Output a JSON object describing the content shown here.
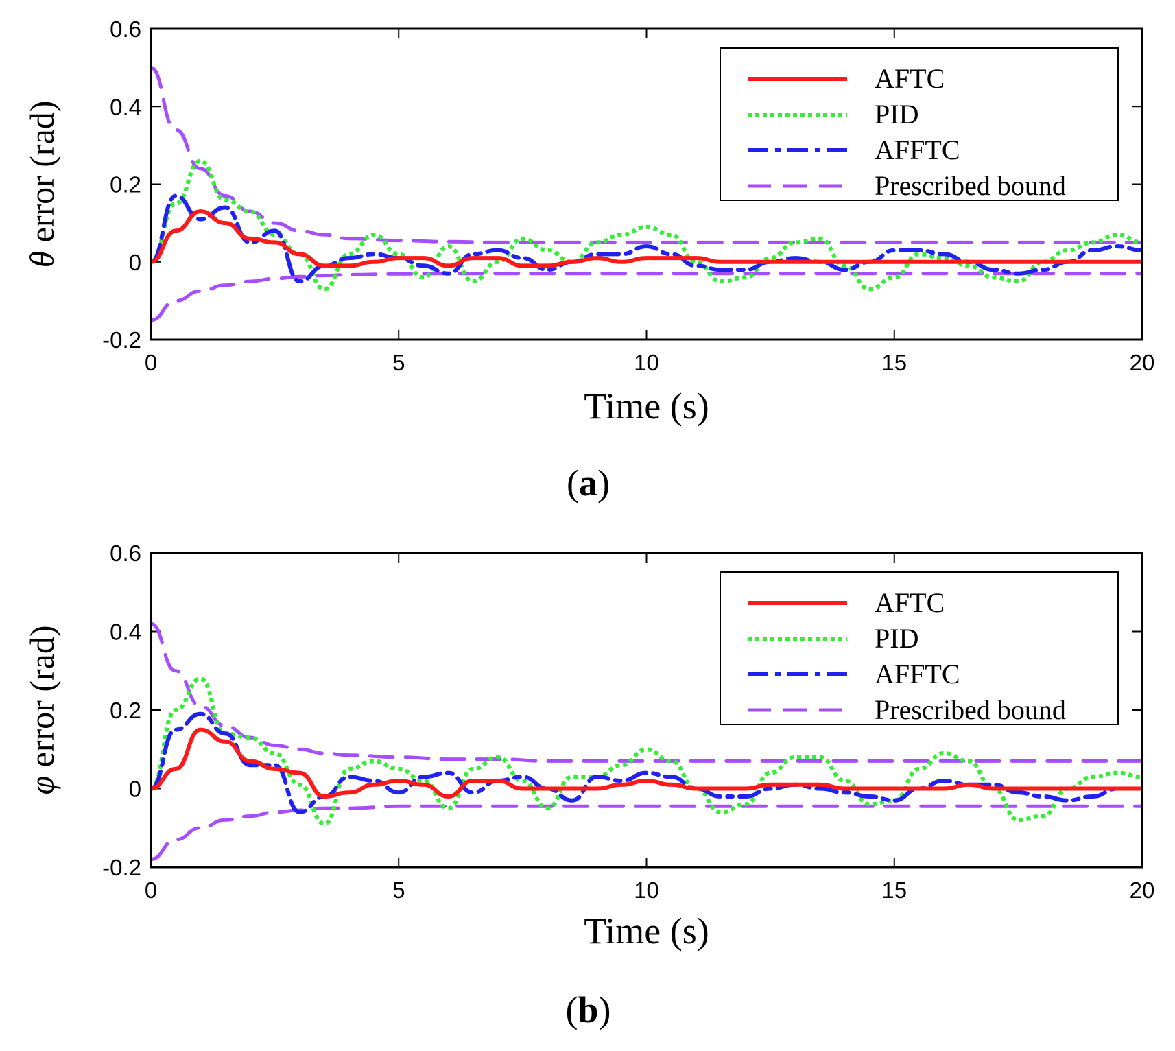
{
  "chart_data": [
    {
      "type": "line",
      "panel_label": "a",
      "xlabel": "Time (s)",
      "ylabel_symbol": "θ",
      "ylabel_text": " error (rad)",
      "xlim": [
        0,
        20
      ],
      "ylim": [
        -0.2,
        0.6
      ],
      "xticks": [
        0,
        5,
        10,
        15,
        20
      ],
      "yticks": [
        -0.2,
        0,
        0.2,
        0.4,
        0.6
      ],
      "ytick_labels": [
        "-0.2",
        "0",
        "0.2",
        "0.4",
        "0.6"
      ],
      "legend_position": "top-right",
      "series": [
        {
          "name": "AFTC",
          "style": "solid",
          "color": "#ff1a1a",
          "x": [
            0,
            0.5,
            1,
            1.5,
            2,
            2.5,
            3,
            3.5,
            4,
            4.5,
            5,
            5.5,
            6,
            6.5,
            7,
            7.5,
            8,
            8.5,
            9,
            9.5,
            10,
            10.5,
            11,
            11.5,
            12,
            12.5,
            13,
            13.5,
            14,
            14.5,
            15,
            15.5,
            16,
            16.5,
            17,
            17.5,
            18,
            18.5,
            19,
            19.5,
            20
          ],
          "y": [
            0,
            0.08,
            0.13,
            0.1,
            0.06,
            0.05,
            0.02,
            -0.01,
            -0.01,
            0,
            0.01,
            0.01,
            -0.01,
            0.01,
            0.01,
            -0.01,
            -0.01,
            0,
            0.01,
            0,
            0.01,
            0.01,
            0.01,
            0,
            0,
            0,
            0,
            0,
            0,
            0,
            0,
            0,
            0,
            0,
            0,
            0,
            0,
            0,
            0,
            0,
            0
          ]
        },
        {
          "name": "PID",
          "style": "dotted",
          "color": "#33ee33",
          "x": [
            0,
            0.5,
            1,
            1.5,
            2,
            2.5,
            3,
            3.5,
            4,
            4.5,
            5,
            5.5,
            6,
            6.5,
            7,
            7.5,
            8,
            8.5,
            9,
            9.5,
            10,
            10.5,
            11,
            11.5,
            12,
            12.5,
            13,
            13.5,
            14,
            14.5,
            15,
            15.5,
            16,
            16.5,
            17,
            17.5,
            18,
            18.5,
            19,
            19.5,
            20
          ],
          "y": [
            0,
            0.15,
            0.26,
            0.16,
            0.13,
            0.07,
            0.02,
            -0.07,
            0.02,
            0.07,
            0.02,
            -0.04,
            0.04,
            -0.05,
            0,
            0.06,
            0.03,
            0,
            0.05,
            0.07,
            0.09,
            0.07,
            0,
            -0.05,
            -0.04,
            0.01,
            0.05,
            0.06,
            -0.01,
            -0.07,
            -0.04,
            0.02,
            0.01,
            -0.01,
            -0.04,
            -0.05,
            0,
            0.03,
            0.05,
            0.07,
            0.05
          ]
        },
        {
          "name": "AFFTC",
          "style": "dashdot",
          "color": "#2222ee",
          "x": [
            0,
            0.5,
            1,
            1.5,
            2,
            2.5,
            3,
            3.5,
            4,
            4.5,
            5,
            5.5,
            6,
            6.5,
            7,
            7.5,
            8,
            8.5,
            9,
            9.5,
            10,
            10.5,
            11,
            11.5,
            12,
            12.5,
            13,
            13.5,
            14,
            14.5,
            15,
            15.5,
            16,
            16.5,
            17,
            17.5,
            18,
            18.5,
            19,
            19.5,
            20
          ],
          "y": [
            0,
            0.17,
            0.11,
            0.14,
            0.05,
            0.08,
            -0.05,
            -0.01,
            0.01,
            0.02,
            0.01,
            -0.01,
            -0.03,
            0.02,
            0.03,
            0.01,
            -0.02,
            0,
            0.02,
            0.02,
            0.04,
            0.02,
            -0.01,
            -0.02,
            -0.02,
            0,
            0.01,
            0,
            -0.02,
            0,
            0.03,
            0.03,
            0.02,
            0,
            -0.02,
            -0.03,
            -0.02,
            0,
            0.03,
            0.04,
            0.03
          ]
        },
        {
          "name": "Prescribed bound",
          "style": "dashed",
          "color": "#a64dff",
          "x": [
            0,
            0.5,
            1,
            1.5,
            2,
            2.5,
            3,
            3.5,
            4,
            5,
            6,
            7,
            8,
            10,
            12,
            15,
            20
          ],
          "y": [
            0.5,
            0.34,
            0.24,
            0.17,
            0.13,
            0.1,
            0.08,
            0.07,
            0.06,
            0.055,
            0.052,
            0.05,
            0.05,
            0.05,
            0.05,
            0.05,
            0.05
          ],
          "y_lower": [
            -0.15,
            -0.1,
            -0.075,
            -0.06,
            -0.05,
            -0.043,
            -0.038,
            -0.035,
            -0.033,
            -0.031,
            -0.03,
            -0.03,
            -0.03,
            -0.03,
            -0.03,
            -0.03,
            -0.03
          ]
        }
      ]
    },
    {
      "type": "line",
      "panel_label": "b",
      "xlabel": "Time (s)",
      "ylabel_symbol": "φ",
      "ylabel_text": " error (rad)",
      "xlim": [
        0,
        20
      ],
      "ylim": [
        -0.2,
        0.6
      ],
      "xticks": [
        0,
        5,
        10,
        15,
        20
      ],
      "yticks": [
        -0.2,
        0,
        0.2,
        0.4,
        0.6
      ],
      "ytick_labels": [
        "-0.2",
        "0",
        "0.2",
        "0.4",
        "0.6"
      ],
      "legend_position": "top-right",
      "series": [
        {
          "name": "AFTC",
          "style": "solid",
          "color": "#ff1a1a",
          "x": [
            0,
            0.5,
            1,
            1.5,
            2,
            2.5,
            3,
            3.5,
            4,
            4.5,
            5,
            5.5,
            6,
            6.5,
            7,
            7.5,
            8,
            8.5,
            9,
            9.5,
            10,
            10.5,
            11,
            11.5,
            12,
            12.5,
            13,
            13.5,
            14,
            14.5,
            15,
            15.5,
            16,
            16.5,
            17,
            17.5,
            18,
            18.5,
            19,
            19.5,
            20
          ],
          "y": [
            0,
            0.05,
            0.15,
            0.12,
            0.07,
            0.05,
            0.04,
            -0.02,
            -0.01,
            0.01,
            0.02,
            0.01,
            -0.02,
            0.02,
            0.02,
            0,
            0,
            0,
            0,
            0.01,
            0.02,
            0.01,
            0,
            0,
            0,
            0.01,
            0.01,
            0.01,
            0,
            0,
            0,
            0,
            0,
            0.01,
            0,
            0,
            0,
            0,
            0,
            0,
            0
          ]
        },
        {
          "name": "PID",
          "style": "dotted",
          "color": "#33ee33",
          "x": [
            0,
            0.5,
            1,
            1.5,
            2,
            2.5,
            3,
            3.5,
            4,
            4.5,
            5,
            5.5,
            6,
            6.5,
            7,
            7.5,
            8,
            8.5,
            9,
            9.5,
            10,
            10.5,
            11,
            11.5,
            12,
            12.5,
            13,
            13.5,
            14,
            14.5,
            15,
            15.5,
            16,
            16.5,
            17,
            17.5,
            18,
            18.5,
            19,
            19.5,
            20
          ],
          "y": [
            0,
            0.2,
            0.28,
            0.14,
            0.13,
            0.09,
            0.01,
            -0.09,
            0.05,
            0.07,
            0.05,
            0.02,
            -0.05,
            0.05,
            0.08,
            0.02,
            -0.05,
            0.03,
            0.03,
            0.06,
            0.1,
            0.07,
            0,
            -0.06,
            -0.04,
            0.04,
            0.08,
            0.08,
            0.02,
            -0.04,
            -0.03,
            0.05,
            0.09,
            0.07,
            0,
            -0.08,
            -0.07,
            0,
            0.03,
            0.04,
            0.03
          ]
        },
        {
          "name": "AFFTC",
          "style": "dashdot",
          "color": "#2222ee",
          "x": [
            0,
            0.5,
            1,
            1.5,
            2,
            2.5,
            3,
            3.5,
            4,
            4.5,
            5,
            5.5,
            6,
            6.5,
            7,
            7.5,
            8,
            8.5,
            9,
            9.5,
            10,
            10.5,
            11,
            11.5,
            12,
            12.5,
            13,
            13.5,
            14,
            14.5,
            15,
            15.5,
            16,
            16.5,
            17,
            17.5,
            18,
            18.5,
            19,
            19.5,
            20
          ],
          "y": [
            0,
            0.15,
            0.19,
            0.14,
            0.06,
            0.06,
            -0.06,
            -0.02,
            0.03,
            0.02,
            -0.01,
            0.03,
            0.04,
            -0.01,
            0.02,
            0.03,
            0,
            -0.03,
            0.03,
            0.02,
            0.04,
            0.03,
            0,
            -0.02,
            -0.02,
            0,
            0.01,
            0,
            -0.01,
            -0.02,
            -0.03,
            0,
            0.02,
            0.01,
            0.01,
            -0.01,
            -0.02,
            -0.03,
            -0.02,
            0,
            0
          ]
        },
        {
          "name": "Prescribed bound",
          "style": "dashed",
          "color": "#a64dff",
          "x": [
            0,
            0.5,
            1,
            1.5,
            2,
            2.5,
            3,
            3.5,
            4,
            5,
            6,
            7,
            8,
            10,
            12,
            15,
            20
          ],
          "y": [
            0.42,
            0.3,
            0.21,
            0.16,
            0.13,
            0.11,
            0.1,
            0.09,
            0.085,
            0.08,
            0.075,
            0.075,
            0.07,
            0.07,
            0.07,
            0.07,
            0.07
          ],
          "y_lower": [
            -0.18,
            -0.13,
            -0.1,
            -0.08,
            -0.07,
            -0.06,
            -0.055,
            -0.05,
            -0.05,
            -0.045,
            -0.045,
            -0.045,
            -0.045,
            -0.045,
            -0.045,
            -0.045,
            -0.045
          ]
        }
      ]
    }
  ]
}
